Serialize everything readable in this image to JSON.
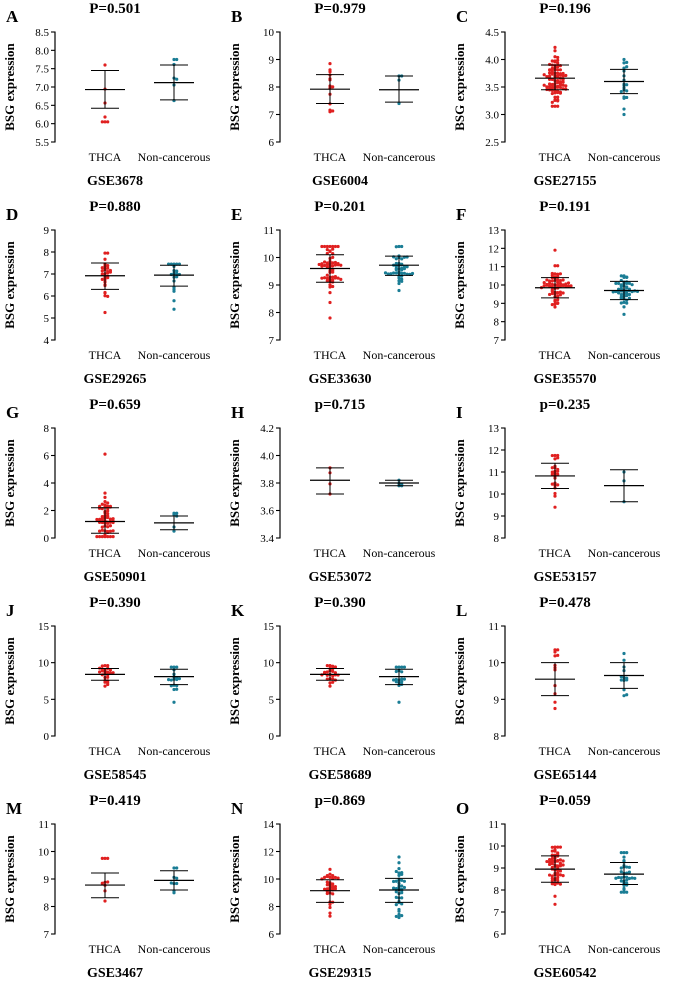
{
  "colors": {
    "thca": "#e02020",
    "non_cancerous": "#1a7d95",
    "axis": "#000000"
  },
  "chart_data": [
    {
      "letter": "A",
      "type": "scatter",
      "title": "P=0.501",
      "dataset": "GSE3678",
      "ylabel": "BSG expression",
      "categories": [
        "THCA",
        "Non-cancerous"
      ],
      "ylim": [
        5.5,
        8.5
      ],
      "yticks": [
        5.5,
        6.0,
        6.5,
        7.0,
        7.5,
        8.0,
        8.5
      ],
      "tick_labels": [
        "5.5",
        "6.0",
        "6.5",
        "7.0",
        "7.5",
        "8.0",
        "8.5"
      ],
      "groups": [
        {
          "name": "THCA",
          "mean": 6.93,
          "sd_low": 6.42,
          "sd_high": 7.45,
          "n": 7,
          "min": 6.05,
          "max": 7.6
        },
        {
          "name": "Non-cancerous",
          "mean": 7.12,
          "sd_low": 6.65,
          "sd_high": 7.6,
          "n": 7,
          "min": 6.63,
          "max": 7.75
        }
      ]
    },
    {
      "letter": "B",
      "type": "scatter",
      "title": "P=0.979",
      "dataset": "GSE6004",
      "ylabel": "BSG expression",
      "categories": [
        "THCA",
        "Non-cancerous"
      ],
      "ylim": [
        6,
        10
      ],
      "yticks": [
        6,
        7,
        8,
        9,
        10
      ],
      "tick_labels": [
        "6",
        "7",
        "8",
        "9",
        "10"
      ],
      "groups": [
        {
          "name": "THCA",
          "mean": 7.92,
          "sd_low": 7.4,
          "sd_high": 8.45,
          "n": 14,
          "min": 7.1,
          "max": 8.85
        },
        {
          "name": "Non-cancerous",
          "mean": 7.9,
          "sd_low": 7.45,
          "sd_high": 8.4,
          "n": 4,
          "min": 7.4,
          "max": 8.4
        }
      ]
    },
    {
      "letter": "C",
      "type": "scatter",
      "title": "P=0.196",
      "dataset": "GSE27155",
      "ylabel": "BSG expression",
      "categories": [
        "THCA",
        "Non-cancerous"
      ],
      "ylim": [
        2.5,
        4.5
      ],
      "yticks": [
        2.5,
        3.0,
        3.5,
        4.0,
        4.5
      ],
      "tick_labels": [
        "2.5",
        "3.0",
        "3.5",
        "4.0",
        "4.5"
      ],
      "groups": [
        {
          "name": "THCA",
          "mean": 3.66,
          "sd_low": 3.45,
          "sd_high": 3.9,
          "n": 90,
          "min": 3.15,
          "max": 4.22
        },
        {
          "name": "Non-cancerous",
          "mean": 3.6,
          "sd_low": 3.38,
          "sd_high": 3.82,
          "n": 20,
          "min": 3.0,
          "max": 4.0
        }
      ]
    },
    {
      "letter": "D",
      "type": "scatter",
      "title": "P=0.880",
      "dataset": "GSE29265",
      "ylabel": "BSG expression",
      "categories": [
        "THCA",
        "Non-cancerous"
      ],
      "ylim": [
        4,
        9
      ],
      "yticks": [
        4,
        5,
        6,
        7,
        8,
        9
      ],
      "tick_labels": [
        "4",
        "5",
        "6",
        "7",
        "8",
        "9"
      ],
      "groups": [
        {
          "name": "THCA",
          "mean": 6.92,
          "sd_low": 6.3,
          "sd_high": 7.5,
          "n": 30,
          "min": 5.25,
          "max": 7.95
        },
        {
          "name": "Non-cancerous",
          "mean": 6.95,
          "sd_low": 6.45,
          "sd_high": 7.4,
          "n": 20,
          "min": 5.4,
          "max": 7.45
        }
      ]
    },
    {
      "letter": "E",
      "type": "scatter",
      "title": "P=0.201",
      "dataset": "GSE33630",
      "ylabel": "BSG expression",
      "categories": [
        "THCA",
        "Non-cancerous"
      ],
      "ylim": [
        7,
        11
      ],
      "yticks": [
        7,
        8,
        9,
        10,
        11
      ],
      "tick_labels": [
        "7",
        "8",
        "9",
        "10",
        "11"
      ],
      "groups": [
        {
          "name": "THCA",
          "mean": 9.6,
          "sd_low": 9.1,
          "sd_high": 10.1,
          "n": 60,
          "min": 7.8,
          "max": 10.4
        },
        {
          "name": "Non-cancerous",
          "mean": 9.72,
          "sd_low": 9.35,
          "sd_high": 10.05,
          "n": 45,
          "min": 8.8,
          "max": 10.4
        }
      ]
    },
    {
      "letter": "F",
      "type": "scatter",
      "title": "P=0.191",
      "dataset": "GSE35570",
      "ylabel": "BSG expression",
      "categories": [
        "THCA",
        "Non-cancerous"
      ],
      "ylim": [
        7,
        13
      ],
      "yticks": [
        7,
        8,
        9,
        10,
        11,
        12,
        13
      ],
      "tick_labels": [
        "7",
        "8",
        "9",
        "10",
        "11",
        "12",
        "13"
      ],
      "groups": [
        {
          "name": "THCA",
          "mean": 9.85,
          "sd_low": 9.3,
          "sd_high": 10.4,
          "n": 65,
          "min": 8.8,
          "max": 11.9
        },
        {
          "name": "Non-cancerous",
          "mean": 9.7,
          "sd_low": 9.2,
          "sd_high": 10.2,
          "n": 50,
          "min": 8.4,
          "max": 10.5
        }
      ]
    },
    {
      "letter": "G",
      "type": "scatter",
      "title": "P=0.659",
      "dataset": "GSE50901",
      "ylabel": "BSG expression",
      "categories": [
        "THCA",
        "Non-cancerous"
      ],
      "ylim": [
        0,
        8
      ],
      "yticks": [
        0,
        2,
        4,
        6,
        8
      ],
      "tick_labels": [
        "0",
        "2",
        "4",
        "6",
        "8"
      ],
      "groups": [
        {
          "name": "THCA",
          "mean": 1.2,
          "sd_low": 0.35,
          "sd_high": 2.2,
          "n": 60,
          "min": 0.1,
          "max": 6.1
        },
        {
          "name": "Non-cancerous",
          "mean": 1.1,
          "sd_low": 0.6,
          "sd_high": 1.6,
          "n": 6,
          "min": 0.5,
          "max": 1.8
        }
      ]
    },
    {
      "letter": "H",
      "type": "scatter",
      "title": "p=0.715",
      "dataset": "GSE53072",
      "ylabel": "BSG expression",
      "categories": [
        "THCA",
        "Non-cancerous"
      ],
      "ylim": [
        3.4,
        4.2
      ],
      "yticks": [
        3.4,
        3.6,
        3.8,
        4.0,
        4.2
      ],
      "tick_labels": [
        "3.4",
        "3.6",
        "3.8",
        "4.0",
        "4.2"
      ],
      "groups": [
        {
          "name": "THCA",
          "mean": 3.82,
          "sd_low": 3.72,
          "sd_high": 3.91,
          "n": 4,
          "min": 3.72,
          "max": 3.91
        },
        {
          "name": "Non-cancerous",
          "mean": 3.8,
          "sd_low": 3.78,
          "sd_high": 3.82,
          "n": 5,
          "min": 3.78,
          "max": 3.82
        }
      ]
    },
    {
      "letter": "I",
      "type": "scatter",
      "title": "p=0.235",
      "dataset": "GSE53157",
      "ylabel": "BSG expression",
      "categories": [
        "THCA",
        "Non-cancerous"
      ],
      "ylim": [
        8,
        13
      ],
      "yticks": [
        8,
        9,
        10,
        11,
        12,
        13
      ],
      "tick_labels": [
        "8",
        "9",
        "10",
        "11",
        "12",
        "13"
      ],
      "groups": [
        {
          "name": "THCA",
          "mean": 10.82,
          "sd_low": 10.25,
          "sd_high": 11.4,
          "n": 25,
          "min": 9.4,
          "max": 11.75
        },
        {
          "name": "Non-cancerous",
          "mean": 10.38,
          "sd_low": 9.65,
          "sd_high": 11.1,
          "n": 3,
          "min": 9.65,
          "max": 11.0
        }
      ]
    },
    {
      "letter": "J",
      "type": "scatter",
      "title": "P=0.390",
      "dataset": "GSE58545",
      "ylabel": "BSG expression",
      "categories": [
        "THCA",
        "Non-cancerous"
      ],
      "ylim": [
        0,
        15
      ],
      "yticks": [
        0,
        5,
        10,
        15
      ],
      "tick_labels": [
        "0",
        "5",
        "10",
        "15"
      ],
      "groups": [
        {
          "name": "THCA",
          "mean": 8.4,
          "sd_low": 7.6,
          "sd_high": 9.2,
          "n": 25,
          "min": 6.8,
          "max": 9.6
        },
        {
          "name": "Non-cancerous",
          "mean": 8.1,
          "sd_low": 7.0,
          "sd_high": 9.1,
          "n": 18,
          "min": 4.6,
          "max": 9.4
        }
      ]
    },
    {
      "letter": "K",
      "type": "scatter",
      "title": "P=0.390",
      "dataset": "GSE58689",
      "ylabel": "BSG expression",
      "categories": [
        "THCA",
        "Non-cancerous"
      ],
      "ylim": [
        0,
        15
      ],
      "yticks": [
        0,
        5,
        10,
        15
      ],
      "tick_labels": [
        "0",
        "5",
        "10",
        "15"
      ],
      "groups": [
        {
          "name": "THCA",
          "mean": 8.4,
          "sd_low": 7.6,
          "sd_high": 9.2,
          "n": 25,
          "min": 6.8,
          "max": 9.6
        },
        {
          "name": "Non-cancerous",
          "mean": 8.1,
          "sd_low": 7.0,
          "sd_high": 9.1,
          "n": 18,
          "min": 4.6,
          "max": 9.4
        }
      ]
    },
    {
      "letter": "L",
      "type": "scatter",
      "title": "P=0.478",
      "dataset": "GSE65144",
      "ylabel": "BSG expression",
      "categories": [
        "THCA",
        "Non-cancerous"
      ],
      "ylim": [
        8,
        11
      ],
      "yticks": [
        8,
        9,
        10,
        11
      ],
      "tick_labels": [
        "8",
        "9",
        "10",
        "11"
      ],
      "groups": [
        {
          "name": "THCA",
          "mean": 9.55,
          "sd_low": 9.1,
          "sd_high": 10.0,
          "n": 12,
          "min": 8.75,
          "max": 10.35
        },
        {
          "name": "Non-cancerous",
          "mean": 9.65,
          "sd_low": 9.3,
          "sd_high": 10.0,
          "n": 13,
          "min": 9.1,
          "max": 10.25
        }
      ]
    },
    {
      "letter": "M",
      "type": "scatter",
      "title": "P=0.419",
      "dataset": "GSE3467",
      "ylabel": "BSG expression",
      "categories": [
        "THCA",
        "Non-cancerous"
      ],
      "ylim": [
        7,
        11
      ],
      "yticks": [
        7,
        8,
        9,
        10,
        11
      ],
      "tick_labels": [
        "7",
        "8",
        "9",
        "10",
        "11"
      ],
      "groups": [
        {
          "name": "THCA",
          "mean": 8.78,
          "sd_low": 8.32,
          "sd_high": 9.22,
          "n": 9,
          "min": 8.2,
          "max": 9.75
        },
        {
          "name": "Non-cancerous",
          "mean": 8.95,
          "sd_low": 8.6,
          "sd_high": 9.3,
          "n": 9,
          "min": 8.5,
          "max": 9.4
        }
      ]
    },
    {
      "letter": "N",
      "type": "scatter",
      "title": "p=0.869",
      "dataset": "GSE29315",
      "ylabel": "BSG expression",
      "categories": [
        "THCA",
        "Non-cancerous"
      ],
      "ylim": [
        6,
        14
      ],
      "yticks": [
        6,
        8,
        10,
        12,
        14
      ],
      "tick_labels": [
        "6",
        "8",
        "10",
        "12",
        "14"
      ],
      "groups": [
        {
          "name": "THCA",
          "mean": 9.15,
          "sd_low": 8.3,
          "sd_high": 9.95,
          "n": 35,
          "min": 7.3,
          "max": 10.7
        },
        {
          "name": "Non-cancerous",
          "mean": 9.2,
          "sd_low": 8.3,
          "sd_high": 10.05,
          "n": 40,
          "min": 7.2,
          "max": 11.6
        }
      ]
    },
    {
      "letter": "O",
      "type": "scatter",
      "title": "P=0.059",
      "dataset": "GSE60542",
      "ylabel": "BSG expression",
      "categories": [
        "THCA",
        "Non-cancerous"
      ],
      "ylim": [
        6,
        11
      ],
      "yticks": [
        6,
        7,
        8,
        9,
        10,
        11
      ],
      "tick_labels": [
        "6",
        "7",
        "8",
        "9",
        "10",
        "11"
      ],
      "groups": [
        {
          "name": "THCA",
          "mean": 8.95,
          "sd_low": 8.35,
          "sd_high": 9.55,
          "n": 60,
          "min": 7.35,
          "max": 9.95
        },
        {
          "name": "Non-cancerous",
          "mean": 8.72,
          "sd_low": 8.25,
          "sd_high": 9.25,
          "n": 35,
          "min": 7.9,
          "max": 9.7
        }
      ]
    }
  ]
}
